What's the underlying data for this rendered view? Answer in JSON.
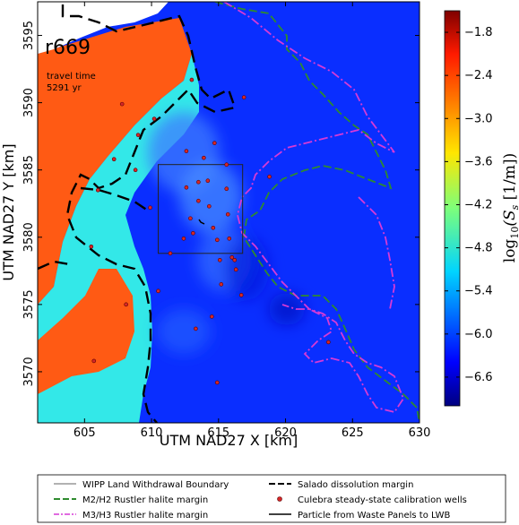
{
  "chart_data": {
    "type": "heatmap",
    "annotation": {
      "run_id": "r669",
      "line1": "travel time",
      "line2": "5291 yr"
    },
    "xlabel": "UTM NAD27 X [km]",
    "ylabel": "UTM NAD27 Y [km]",
    "xlim": [
      601.5,
      630
    ],
    "ylim": [
      3566.2,
      3597.5
    ],
    "xticks": [
      "605",
      "610",
      "615",
      "620",
      "625",
      "630"
    ],
    "yticks": [
      "3570",
      "3575",
      "3580",
      "3585",
      "3590",
      "3595"
    ],
    "colorbar": {
      "label_tex": "log",
      "label_sub": "10",
      "label_var": "(S",
      "label_var_sub": "s",
      "label_units": " [1/m])",
      "vmin": -7.0,
      "vmax": -1.5,
      "ticks": [
        "−1.8",
        "−2.4",
        "−3.0",
        "−3.6",
        "−4.2",
        "−4.8",
        "−5.4",
        "−6.0",
        "−6.6"
      ],
      "tick_values": [
        -1.8,
        -2.4,
        -3.0,
        -3.6,
        -4.2,
        -4.8,
        -5.4,
        -6.0,
        -6.6
      ]
    },
    "lwb_box": {
      "x": [
        610.5,
        616.8
      ],
      "y": [
        3578.8,
        3585.4
      ]
    },
    "wells": [
      [
        606.0,
        3583.5
      ],
      [
        607.2,
        3585.8
      ],
      [
        607.8,
        3589.9
      ],
      [
        608.8,
        3585.0
      ],
      [
        609.0,
        3587.6
      ],
      [
        609.9,
        3582.2
      ],
      [
        610.5,
        3576.0
      ],
      [
        611.4,
        3578.8
      ],
      [
        612.4,
        3579.9
      ],
      [
        612.6,
        3583.7
      ],
      [
        612.9,
        3581.4
      ],
      [
        613.1,
        3580.3
      ],
      [
        613.3,
        3573.2
      ],
      [
        613.5,
        3582.7
      ],
      [
        613.9,
        3585.9
      ],
      [
        614.2,
        3584.2
      ],
      [
        614.3,
        3582.3
      ],
      [
        614.6,
        3580.7
      ],
      [
        614.9,
        3579.8
      ],
      [
        615.1,
        3578.3
      ],
      [
        615.2,
        3576.5
      ],
      [
        615.6,
        3583.6
      ],
      [
        615.7,
        3581.7
      ],
      [
        615.8,
        3579.9
      ],
      [
        616.0,
        3578.5
      ],
      [
        616.2,
        3578.3
      ],
      [
        616.3,
        3577.6
      ],
      [
        616.7,
        3575.7
      ],
      [
        616.9,
        3590.4
      ],
      [
        618.8,
        3584.5
      ],
      [
        613.0,
        3591.7
      ],
      [
        612.6,
        3586.4
      ],
      [
        614.7,
        3587.0
      ],
      [
        614.5,
        3574.1
      ],
      [
        614.9,
        3569.2
      ],
      [
        623.2,
        3572.2
      ],
      [
        608.1,
        3575.0
      ],
      [
        610.2,
        3588.8
      ],
      [
        605.5,
        3579.3
      ],
      [
        605.7,
        3570.8
      ],
      [
        615.6,
        3585.4
      ],
      [
        613.5,
        3584.1
      ]
    ],
    "legend": [
      {
        "label": "WIPP Land Withdrawal Boundary",
        "style": "thin-solid",
        "color": "#333333"
      },
      {
        "label": "Salado dissolution margin",
        "style": "dashed",
        "color": "#000000"
      },
      {
        "label": "M2/H2 Rustler halite margin",
        "style": "dashed",
        "color": "#2e8b2e"
      },
      {
        "label": "Culebra steady-state calibration wells",
        "style": "dot",
        "color": "#d62728"
      },
      {
        "label": "M3/H3 Rustler halite margin",
        "style": "dashdot",
        "color": "#d63ad6"
      },
      {
        "label": "Particle from Waste Panels to LWB",
        "style": "solid",
        "color": "#000000"
      }
    ]
  }
}
